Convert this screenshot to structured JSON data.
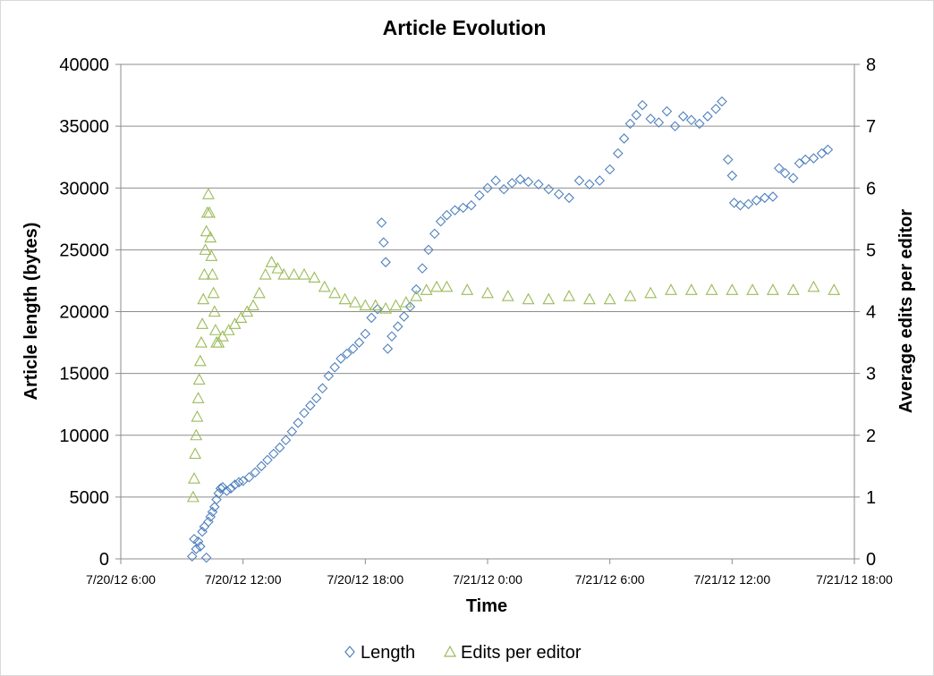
{
  "chart_data": {
    "type": "scatter",
    "title": "Article Evolution",
    "xlabel": "Time",
    "ylabel": "Article length (bytes)",
    "y2label": "Average edits per editor",
    "x_unit": "hours since 7/20/12 0:00",
    "xlim": [
      6,
      42
    ],
    "ylim": [
      0,
      40000
    ],
    "y2lim": [
      0,
      8
    ],
    "x_ticks": [
      6,
      12,
      18,
      24,
      30,
      36,
      42
    ],
    "x_tick_labels": [
      "7/20/12 6:00",
      "7/20/12 12:00",
      "7/20/12 18:00",
      "7/21/12 0:00",
      "7/21/12 6:00",
      "7/21/12 12:00",
      "7/21/12 18:00"
    ],
    "y_ticks": [
      0,
      5000,
      10000,
      15000,
      20000,
      25000,
      30000,
      35000,
      40000
    ],
    "y_tick_labels": [
      "0",
      "5000",
      "10000",
      "15000",
      "20000",
      "25000",
      "30000",
      "35000",
      "40000"
    ],
    "y2_ticks": [
      0,
      1,
      2,
      3,
      4,
      5,
      6,
      7,
      8
    ],
    "y2_tick_labels": [
      "0",
      "1",
      "2",
      "3",
      "4",
      "5",
      "6",
      "7",
      "8"
    ],
    "grid": true,
    "legend_position": "bottom",
    "series": [
      {
        "name": "Length",
        "axis": "left",
        "marker": "diamond",
        "color": "#4F81BD",
        "points": [
          [
            9.5,
            200
          ],
          [
            9.6,
            1600
          ],
          [
            9.7,
            800
          ],
          [
            9.8,
            1400
          ],
          [
            9.9,
            1000
          ],
          [
            10.0,
            2200
          ],
          [
            10.1,
            2600
          ],
          [
            10.2,
            100
          ],
          [
            10.3,
            3000
          ],
          [
            10.4,
            3400
          ],
          [
            10.5,
            3800
          ],
          [
            10.6,
            4200
          ],
          [
            10.7,
            4800
          ],
          [
            10.8,
            5300
          ],
          [
            10.9,
            5700
          ],
          [
            11.0,
            5800
          ],
          [
            11.2,
            5500
          ],
          [
            11.4,
            5700
          ],
          [
            11.6,
            6000
          ],
          [
            11.8,
            6200
          ],
          [
            12.0,
            6300
          ],
          [
            12.3,
            6600
          ],
          [
            12.6,
            7000
          ],
          [
            12.9,
            7500
          ],
          [
            13.2,
            8000
          ],
          [
            13.5,
            8500
          ],
          [
            13.8,
            9000
          ],
          [
            14.1,
            9600
          ],
          [
            14.4,
            10300
          ],
          [
            14.7,
            11000
          ],
          [
            15.0,
            11800
          ],
          [
            15.3,
            12400
          ],
          [
            15.6,
            13000
          ],
          [
            15.9,
            13800
          ],
          [
            16.2,
            14800
          ],
          [
            16.5,
            15500
          ],
          [
            16.8,
            16200
          ],
          [
            17.1,
            16600
          ],
          [
            17.4,
            17000
          ],
          [
            17.7,
            17500
          ],
          [
            18.0,
            18200
          ],
          [
            18.3,
            19500
          ],
          [
            18.6,
            20200
          ],
          [
            18.8,
            27200
          ],
          [
            18.9,
            25600
          ],
          [
            19.0,
            24000
          ],
          [
            19.1,
            17000
          ],
          [
            19.3,
            18000
          ],
          [
            19.6,
            18800
          ],
          [
            19.9,
            19600
          ],
          [
            20.2,
            20400
          ],
          [
            20.5,
            21800
          ],
          [
            20.8,
            23500
          ],
          [
            21.1,
            25000
          ],
          [
            21.4,
            26300
          ],
          [
            21.7,
            27300
          ],
          [
            22.0,
            27800
          ],
          [
            22.4,
            28200
          ],
          [
            22.8,
            28400
          ],
          [
            23.2,
            28600
          ],
          [
            23.6,
            29400
          ],
          [
            24.0,
            30000
          ],
          [
            24.4,
            30600
          ],
          [
            24.8,
            29900
          ],
          [
            25.2,
            30400
          ],
          [
            25.6,
            30700
          ],
          [
            26.0,
            30500
          ],
          [
            26.5,
            30300
          ],
          [
            27.0,
            29900
          ],
          [
            27.5,
            29500
          ],
          [
            28.0,
            29200
          ],
          [
            28.5,
            30600
          ],
          [
            29.0,
            30300
          ],
          [
            29.5,
            30600
          ],
          [
            30.0,
            31500
          ],
          [
            30.4,
            32800
          ],
          [
            30.7,
            34000
          ],
          [
            31.0,
            35200
          ],
          [
            31.3,
            35900
          ],
          [
            31.6,
            36700
          ],
          [
            32.0,
            35600
          ],
          [
            32.4,
            35300
          ],
          [
            32.8,
            36200
          ],
          [
            33.2,
            35000
          ],
          [
            33.6,
            35800
          ],
          [
            34.0,
            35500
          ],
          [
            34.4,
            35200
          ],
          [
            34.8,
            35800
          ],
          [
            35.2,
            36400
          ],
          [
            35.5,
            37000
          ],
          [
            35.8,
            32300
          ],
          [
            36.0,
            31000
          ],
          [
            36.1,
            28800
          ],
          [
            36.4,
            28600
          ],
          [
            36.8,
            28700
          ],
          [
            37.2,
            29000
          ],
          [
            37.6,
            29200
          ],
          [
            38.0,
            29300
          ],
          [
            38.3,
            31600
          ],
          [
            38.6,
            31200
          ],
          [
            39.0,
            30800
          ],
          [
            39.3,
            32000
          ],
          [
            39.6,
            32300
          ],
          [
            40.0,
            32400
          ],
          [
            40.4,
            32800
          ],
          [
            40.7,
            33100
          ]
        ]
      },
      {
        "name": "Edits per editor",
        "axis": "right",
        "marker": "triangle",
        "color": "#9BBB59",
        "points": [
          [
            9.55,
            1.0
          ],
          [
            9.6,
            1.3
          ],
          [
            9.65,
            1.7
          ],
          [
            9.7,
            2.0
          ],
          [
            9.75,
            2.3
          ],
          [
            9.8,
            2.6
          ],
          [
            9.85,
            2.9
          ],
          [
            9.9,
            3.2
          ],
          [
            9.95,
            3.5
          ],
          [
            10.0,
            3.8
          ],
          [
            10.05,
            4.2
          ],
          [
            10.1,
            4.6
          ],
          [
            10.15,
            5.0
          ],
          [
            10.2,
            5.3
          ],
          [
            10.25,
            5.6
          ],
          [
            10.3,
            5.9
          ],
          [
            10.35,
            5.6
          ],
          [
            10.4,
            5.2
          ],
          [
            10.45,
            4.9
          ],
          [
            10.5,
            4.6
          ],
          [
            10.55,
            4.3
          ],
          [
            10.6,
            4.0
          ],
          [
            10.65,
            3.7
          ],
          [
            10.7,
            3.5
          ],
          [
            10.8,
            3.5
          ],
          [
            11.0,
            3.6
          ],
          [
            11.3,
            3.7
          ],
          [
            11.6,
            3.8
          ],
          [
            11.9,
            3.9
          ],
          [
            12.2,
            4.0
          ],
          [
            12.5,
            4.1
          ],
          [
            12.8,
            4.3
          ],
          [
            13.1,
            4.6
          ],
          [
            13.4,
            4.8
          ],
          [
            13.7,
            4.7
          ],
          [
            14.0,
            4.6
          ],
          [
            14.5,
            4.6
          ],
          [
            15.0,
            4.6
          ],
          [
            15.5,
            4.55
          ],
          [
            16.0,
            4.4
          ],
          [
            16.5,
            4.3
          ],
          [
            17.0,
            4.2
          ],
          [
            17.5,
            4.15
          ],
          [
            18.0,
            4.1
          ],
          [
            18.5,
            4.1
          ],
          [
            19.0,
            4.05
          ],
          [
            19.5,
            4.1
          ],
          [
            20.0,
            4.15
          ],
          [
            20.5,
            4.25
          ],
          [
            21.0,
            4.35
          ],
          [
            21.5,
            4.4
          ],
          [
            22.0,
            4.4
          ],
          [
            23.0,
            4.35
          ],
          [
            24.0,
            4.3
          ],
          [
            25.0,
            4.25
          ],
          [
            26.0,
            4.2
          ],
          [
            27.0,
            4.2
          ],
          [
            28.0,
            4.25
          ],
          [
            29.0,
            4.2
          ],
          [
            30.0,
            4.2
          ],
          [
            31.0,
            4.25
          ],
          [
            32.0,
            4.3
          ],
          [
            33.0,
            4.35
          ],
          [
            34.0,
            4.35
          ],
          [
            35.0,
            4.35
          ],
          [
            36.0,
            4.35
          ],
          [
            37.0,
            4.35
          ],
          [
            38.0,
            4.35
          ],
          [
            39.0,
            4.35
          ],
          [
            40.0,
            4.4
          ],
          [
            41.0,
            4.35
          ]
        ]
      }
    ]
  }
}
